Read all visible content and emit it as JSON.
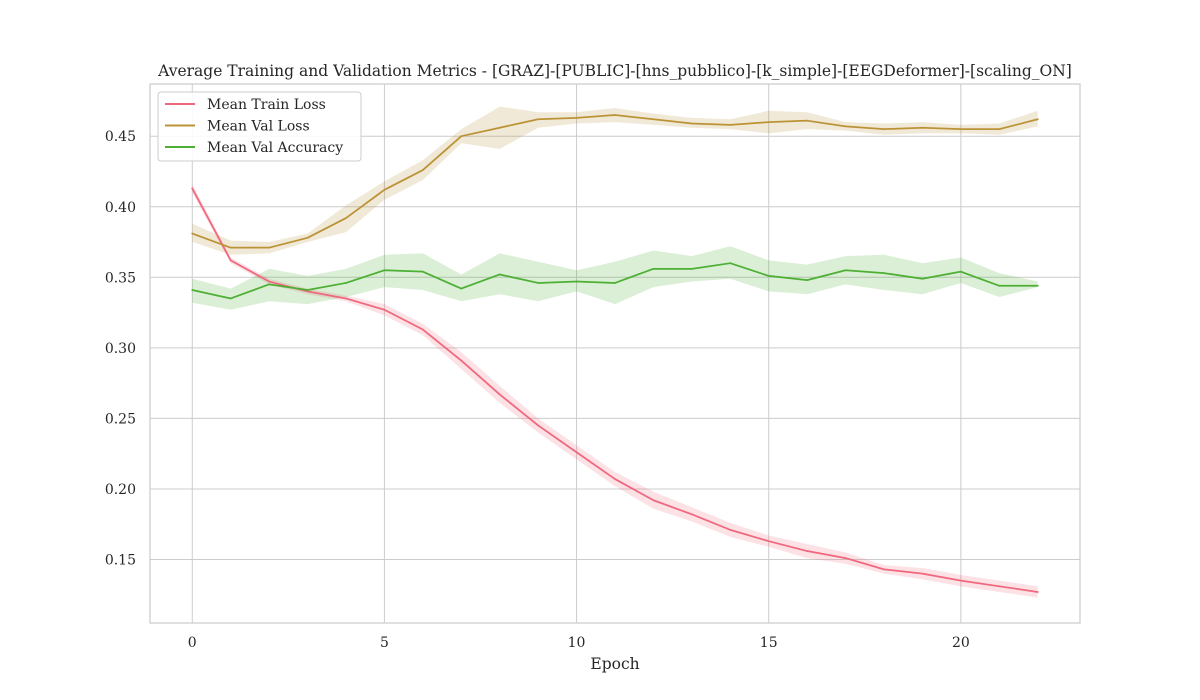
{
  "chart_data": {
    "type": "line",
    "title": "Average Training and Validation Metrics - [GRAZ]-[PUBLIC]-[hns_pubblico]-[k_simple]-[EEGDeformer]-[scaling_ON]",
    "xlabel": "Epoch",
    "ylabel": "",
    "xlim": [
      -1.1,
      23.1
    ],
    "ylim": [
      0.105,
      0.487
    ],
    "xticks": [
      0,
      5,
      10,
      15,
      20
    ],
    "yticks": [
      0.15,
      0.2,
      0.25,
      0.3,
      0.35,
      0.4,
      0.45
    ],
    "ytick_labels": [
      "0.15",
      "0.20",
      "0.25",
      "0.30",
      "0.35",
      "0.40",
      "0.45"
    ],
    "grid": true,
    "legend_position": "top-left",
    "x": [
      0,
      1,
      2,
      3,
      4,
      5,
      6,
      7,
      8,
      9,
      10,
      11,
      12,
      13,
      14,
      15,
      16,
      17,
      18,
      19,
      20,
      21,
      22
    ],
    "series": [
      {
        "name": "Mean Train Loss",
        "color": "#f0677e",
        "values": [
          0.413,
          0.362,
          0.347,
          0.34,
          0.335,
          0.327,
          0.313,
          0.291,
          0.267,
          0.245,
          0.226,
          0.207,
          0.192,
          0.182,
          0.171,
          0.163,
          0.156,
          0.151,
          0.143,
          0.14,
          0.135,
          0.131,
          0.127
        ],
        "lower": [
          0.41,
          0.36,
          0.345,
          0.338,
          0.333,
          0.323,
          0.309,
          0.285,
          0.261,
          0.24,
          0.221,
          0.202,
          0.186,
          0.177,
          0.166,
          0.159,
          0.151,
          0.147,
          0.14,
          0.136,
          0.131,
          0.127,
          0.123
        ],
        "upper": [
          0.416,
          0.364,
          0.349,
          0.342,
          0.337,
          0.331,
          0.317,
          0.297,
          0.273,
          0.25,
          0.231,
          0.212,
          0.198,
          0.187,
          0.176,
          0.167,
          0.161,
          0.155,
          0.146,
          0.144,
          0.139,
          0.135,
          0.131
        ]
      },
      {
        "name": "Mean Val Loss",
        "color": "#bb9336",
        "values": [
          0.381,
          0.371,
          0.371,
          0.378,
          0.392,
          0.412,
          0.426,
          0.45,
          0.456,
          0.462,
          0.463,
          0.465,
          0.462,
          0.459,
          0.458,
          0.46,
          0.461,
          0.457,
          0.455,
          0.456,
          0.455,
          0.455,
          0.462
        ],
        "lower": [
          0.375,
          0.366,
          0.367,
          0.375,
          0.382,
          0.405,
          0.419,
          0.445,
          0.441,
          0.456,
          0.459,
          0.46,
          0.458,
          0.456,
          0.455,
          0.452,
          0.455,
          0.454,
          0.451,
          0.452,
          0.452,
          0.451,
          0.457
        ],
        "upper": [
          0.388,
          0.376,
          0.375,
          0.381,
          0.401,
          0.418,
          0.433,
          0.455,
          0.471,
          0.467,
          0.467,
          0.47,
          0.466,
          0.463,
          0.462,
          0.468,
          0.467,
          0.46,
          0.459,
          0.46,
          0.458,
          0.459,
          0.468
        ]
      },
      {
        "name": "Mean Val Accuracy",
        "color": "#4daf33",
        "values": [
          0.341,
          0.335,
          0.345,
          0.341,
          0.346,
          0.355,
          0.354,
          0.342,
          0.352,
          0.346,
          0.347,
          0.346,
          0.356,
          0.356,
          0.36,
          0.351,
          0.348,
          0.355,
          0.353,
          0.349,
          0.354,
          0.344,
          0.344
        ],
        "lower": [
          0.332,
          0.327,
          0.333,
          0.331,
          0.336,
          0.343,
          0.341,
          0.333,
          0.338,
          0.333,
          0.34,
          0.331,
          0.343,
          0.347,
          0.349,
          0.34,
          0.338,
          0.345,
          0.341,
          0.338,
          0.346,
          0.336,
          0.343
        ],
        "upper": [
          0.349,
          0.342,
          0.356,
          0.351,
          0.356,
          0.366,
          0.367,
          0.352,
          0.367,
          0.361,
          0.355,
          0.361,
          0.369,
          0.365,
          0.372,
          0.362,
          0.359,
          0.365,
          0.366,
          0.36,
          0.364,
          0.353,
          0.347
        ]
      }
    ]
  }
}
